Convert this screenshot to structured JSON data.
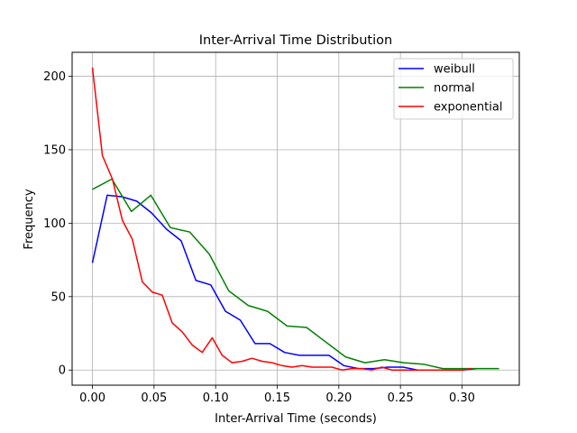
{
  "chart_data": {
    "type": "line",
    "title": "Inter-Arrival Time Distribution",
    "xlabel": "Inter-Arrival Time (seconds)",
    "ylabel": "Frequency",
    "xlim": [
      -0.0165,
      0.3465
    ],
    "ylim": [
      -10.3,
      216.3
    ],
    "xticks": [
      0.0,
      0.05,
      0.1,
      0.15,
      0.2,
      0.25,
      0.3
    ],
    "xtick_labels": [
      "0.00",
      "0.05",
      "0.10",
      "0.15",
      "0.20",
      "0.25",
      "0.30"
    ],
    "yticks": [
      0,
      50,
      100,
      150,
      200
    ],
    "ytick_labels": [
      "0",
      "50",
      "100",
      "150",
      "200"
    ],
    "grid": true,
    "legend_position": "top-right",
    "series": [
      {
        "name": "weibull",
        "color": "#0000ff",
        "x": [
          0.0,
          0.012,
          0.024,
          0.036,
          0.048,
          0.06,
          0.072,
          0.084,
          0.096,
          0.108,
          0.12,
          0.132,
          0.144,
          0.156,
          0.168,
          0.18,
          0.192,
          0.204,
          0.216,
          0.228,
          0.24,
          0.252,
          0.264,
          0.276,
          0.288,
          0.3,
          0.312
        ],
        "y": [
          73,
          119,
          118,
          115,
          107,
          96,
          88,
          61,
          58,
          40,
          34,
          18,
          18,
          12,
          10,
          10,
          10,
          3,
          1,
          1,
          2,
          2,
          0,
          0,
          0,
          0,
          1
        ]
      },
      {
        "name": "normal",
        "color": "#008000",
        "x": [
          0.0,
          0.0158,
          0.0316,
          0.0474,
          0.0632,
          0.079,
          0.0948,
          0.1106,
          0.1264,
          0.1422,
          0.158,
          0.1738,
          0.1896,
          0.2054,
          0.2212,
          0.237,
          0.2528,
          0.2686,
          0.2844,
          0.3002,
          0.316,
          0.33
        ],
        "y": [
          123,
          130,
          108,
          119,
          97,
          94,
          79,
          54,
          44,
          40,
          30,
          29,
          19,
          9,
          5,
          7,
          5,
          4,
          1,
          1,
          1,
          1
        ]
      },
      {
        "name": "exponential",
        "color": "#ff0000",
        "x": [
          0.0,
          0.0081,
          0.0162,
          0.0243,
          0.0324,
          0.0405,
          0.0486,
          0.0567,
          0.0648,
          0.0729,
          0.081,
          0.0891,
          0.0972,
          0.1053,
          0.1134,
          0.1215,
          0.1296,
          0.1377,
          0.1458,
          0.1539,
          0.162,
          0.1701,
          0.1782,
          0.1863,
          0.1944,
          0.2025,
          0.2106,
          0.2187,
          0.2268,
          0.2349,
          0.243,
          0.2511,
          0.2592,
          0.2673,
          0.2754,
          0.2835,
          0.2916,
          0.2997,
          0.3078
        ],
        "y": [
          206,
          146,
          130,
          102,
          89,
          60,
          53,
          51,
          32,
          26,
          17,
          12,
          22,
          10,
          5,
          6,
          8,
          6,
          5,
          3,
          2,
          3,
          2,
          2,
          2,
          0,
          1,
          1,
          0,
          2,
          0,
          0,
          0,
          0,
          0,
          0,
          0,
          0,
          1
        ]
      }
    ]
  }
}
